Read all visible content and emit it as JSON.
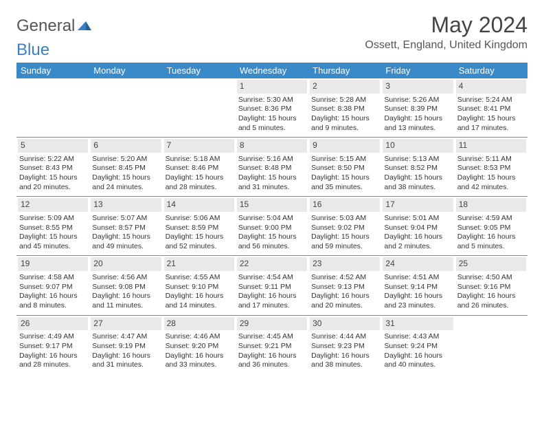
{
  "brand": {
    "part1": "General",
    "part2": "Blue"
  },
  "title": "May 2024",
  "location": "Ossett, England, United Kingdom",
  "colors": {
    "header_bg": "#3a8ac9",
    "header_text": "#ffffff",
    "daynum_bg": "#e9e9e9",
    "border": "#888888",
    "brand_blue": "#3a7fc4",
    "body_text": "#333333"
  },
  "day_names": [
    "Sunday",
    "Monday",
    "Tuesday",
    "Wednesday",
    "Thursday",
    "Friday",
    "Saturday"
  ],
  "weeks": [
    [
      {
        "n": "",
        "sr": "",
        "ss": "",
        "dl": ""
      },
      {
        "n": "",
        "sr": "",
        "ss": "",
        "dl": ""
      },
      {
        "n": "",
        "sr": "",
        "ss": "",
        "dl": ""
      },
      {
        "n": "1",
        "sr": "5:30 AM",
        "ss": "8:36 PM",
        "dl": "15 hours and 5 minutes."
      },
      {
        "n": "2",
        "sr": "5:28 AM",
        "ss": "8:38 PM",
        "dl": "15 hours and 9 minutes."
      },
      {
        "n": "3",
        "sr": "5:26 AM",
        "ss": "8:39 PM",
        "dl": "15 hours and 13 minutes."
      },
      {
        "n": "4",
        "sr": "5:24 AM",
        "ss": "8:41 PM",
        "dl": "15 hours and 17 minutes."
      }
    ],
    [
      {
        "n": "5",
        "sr": "5:22 AM",
        "ss": "8:43 PM",
        "dl": "15 hours and 20 minutes."
      },
      {
        "n": "6",
        "sr": "5:20 AM",
        "ss": "8:45 PM",
        "dl": "15 hours and 24 minutes."
      },
      {
        "n": "7",
        "sr": "5:18 AM",
        "ss": "8:46 PM",
        "dl": "15 hours and 28 minutes."
      },
      {
        "n": "8",
        "sr": "5:16 AM",
        "ss": "8:48 PM",
        "dl": "15 hours and 31 minutes."
      },
      {
        "n": "9",
        "sr": "5:15 AM",
        "ss": "8:50 PM",
        "dl": "15 hours and 35 minutes."
      },
      {
        "n": "10",
        "sr": "5:13 AM",
        "ss": "8:52 PM",
        "dl": "15 hours and 38 minutes."
      },
      {
        "n": "11",
        "sr": "5:11 AM",
        "ss": "8:53 PM",
        "dl": "15 hours and 42 minutes."
      }
    ],
    [
      {
        "n": "12",
        "sr": "5:09 AM",
        "ss": "8:55 PM",
        "dl": "15 hours and 45 minutes."
      },
      {
        "n": "13",
        "sr": "5:07 AM",
        "ss": "8:57 PM",
        "dl": "15 hours and 49 minutes."
      },
      {
        "n": "14",
        "sr": "5:06 AM",
        "ss": "8:59 PM",
        "dl": "15 hours and 52 minutes."
      },
      {
        "n": "15",
        "sr": "5:04 AM",
        "ss": "9:00 PM",
        "dl": "15 hours and 56 minutes."
      },
      {
        "n": "16",
        "sr": "5:03 AM",
        "ss": "9:02 PM",
        "dl": "15 hours and 59 minutes."
      },
      {
        "n": "17",
        "sr": "5:01 AM",
        "ss": "9:04 PM",
        "dl": "16 hours and 2 minutes."
      },
      {
        "n": "18",
        "sr": "4:59 AM",
        "ss": "9:05 PM",
        "dl": "16 hours and 5 minutes."
      }
    ],
    [
      {
        "n": "19",
        "sr": "4:58 AM",
        "ss": "9:07 PM",
        "dl": "16 hours and 8 minutes."
      },
      {
        "n": "20",
        "sr": "4:56 AM",
        "ss": "9:08 PM",
        "dl": "16 hours and 11 minutes."
      },
      {
        "n": "21",
        "sr": "4:55 AM",
        "ss": "9:10 PM",
        "dl": "16 hours and 14 minutes."
      },
      {
        "n": "22",
        "sr": "4:54 AM",
        "ss": "9:11 PM",
        "dl": "16 hours and 17 minutes."
      },
      {
        "n": "23",
        "sr": "4:52 AM",
        "ss": "9:13 PM",
        "dl": "16 hours and 20 minutes."
      },
      {
        "n": "24",
        "sr": "4:51 AM",
        "ss": "9:14 PM",
        "dl": "16 hours and 23 minutes."
      },
      {
        "n": "25",
        "sr": "4:50 AM",
        "ss": "9:16 PM",
        "dl": "16 hours and 26 minutes."
      }
    ],
    [
      {
        "n": "26",
        "sr": "4:49 AM",
        "ss": "9:17 PM",
        "dl": "16 hours and 28 minutes."
      },
      {
        "n": "27",
        "sr": "4:47 AM",
        "ss": "9:19 PM",
        "dl": "16 hours and 31 minutes."
      },
      {
        "n": "28",
        "sr": "4:46 AM",
        "ss": "9:20 PM",
        "dl": "16 hours and 33 minutes."
      },
      {
        "n": "29",
        "sr": "4:45 AM",
        "ss": "9:21 PM",
        "dl": "16 hours and 36 minutes."
      },
      {
        "n": "30",
        "sr": "4:44 AM",
        "ss": "9:23 PM",
        "dl": "16 hours and 38 minutes."
      },
      {
        "n": "31",
        "sr": "4:43 AM",
        "ss": "9:24 PM",
        "dl": "16 hours and 40 minutes."
      },
      {
        "n": "",
        "sr": "",
        "ss": "",
        "dl": ""
      }
    ]
  ],
  "labels": {
    "sunrise": "Sunrise:",
    "sunset": "Sunset:",
    "daylight": "Daylight:"
  }
}
